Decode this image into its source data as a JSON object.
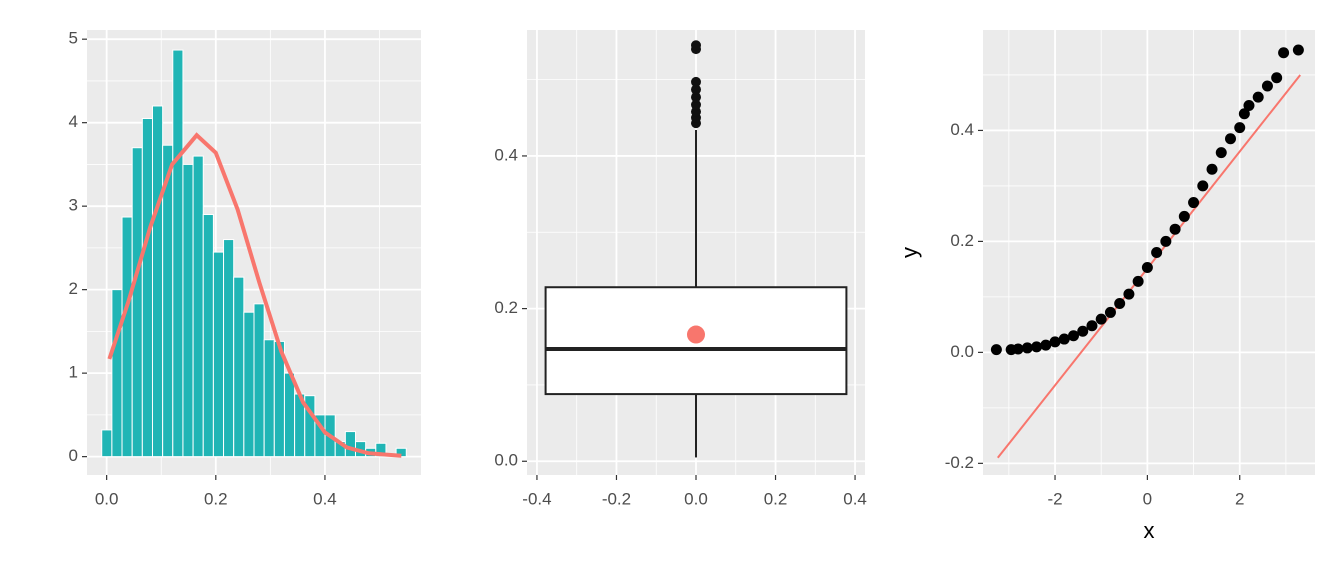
{
  "chart_data": [
    {
      "type": "histogram",
      "bins": [
        -0.009,
        0.0096,
        0.0282,
        0.0468,
        0.0654,
        0.084,
        0.1026,
        0.1212,
        0.1398,
        0.1584,
        0.177,
        0.1956,
        0.2142,
        0.2328,
        0.2514,
        0.27,
        0.2886,
        0.3072,
        0.3258,
        0.3444,
        0.363,
        0.3816,
        0.4002,
        0.4188,
        0.4374,
        0.456,
        0.4746,
        0.4932,
        0.5118,
        0.5304,
        0.549
      ],
      "counts": [
        0.32,
        2.0,
        2.87,
        3.7,
        4.05,
        4.2,
        3.73,
        4.87,
        3.5,
        3.6,
        2.9,
        2.45,
        2.6,
        2.15,
        1.73,
        1.83,
        1.4,
        1.38,
        1.0,
        0.75,
        0.73,
        0.5,
        0.5,
        0.18,
        0.3,
        0.18,
        0.1,
        0.16,
        0.0,
        0.1
      ],
      "color": "#20b5b5",
      "curve": {
        "color": "#f8766d",
        "x": [
          0.005,
          0.04,
          0.08,
          0.12,
          0.165,
          0.2,
          0.24,
          0.28,
          0.32,
          0.36,
          0.4,
          0.44,
          0.48,
          0.54
        ],
        "y": [
          1.17,
          1.86,
          2.75,
          3.5,
          3.85,
          3.64,
          2.96,
          2.08,
          1.26,
          0.65,
          0.29,
          0.11,
          0.04,
          0.01
        ]
      },
      "xlim": [
        -0.036,
        0.576
      ],
      "ylim": [
        -0.22,
        5.11
      ],
      "xticks": [
        {
          "value": 0,
          "label": "0.0"
        },
        0.2,
        0.4
      ],
      "yticks": [
        0,
        1,
        2,
        3,
        4,
        5
      ]
    },
    {
      "type": "box",
      "position": 0,
      "stats": {
        "whislo": 0.005,
        "q1": 0.088,
        "med": 0.147,
        "q3": 0.228,
        "whishi": 0.434
      },
      "outliers": [
        0.443,
        0.45,
        0.458,
        0.467,
        0.477,
        0.487,
        0.497,
        0.54,
        0.545
      ],
      "mean": 0.166,
      "mean_color": "#f8766d",
      "xlim": [
        -0.425,
        0.425
      ],
      "ylim": [
        -0.018,
        0.565
      ],
      "xticks": [
        -0.4,
        -0.2,
        {
          "value": 0,
          "label": "0.0"
        },
        0.2,
        0.4
      ],
      "yticks": [
        {
          "value": 0,
          "label": "0.0"
        },
        0.2,
        0.4
      ]
    },
    {
      "type": "qq",
      "x": [
        -3.27,
        -2.95,
        -2.8,
        -2.6,
        -2.4,
        -2.2,
        -2.0,
        -1.8,
        -1.6,
        -1.4,
        -1.2,
        -1.0,
        -0.8,
        -0.6,
        -0.4,
        -0.2,
        0,
        0.2,
        0.4,
        0.6,
        0.8,
        1.0,
        1.2,
        1.4,
        1.6,
        1.8,
        2.0,
        2.1,
        2.2,
        2.4,
        2.6,
        2.8,
        2.95,
        3.27
      ],
      "y": [
        0.005,
        0.005,
        0.006,
        0.008,
        0.01,
        0.013,
        0.019,
        0.024,
        0.03,
        0.038,
        0.048,
        0.06,
        0.072,
        0.088,
        0.105,
        0.128,
        0.153,
        0.18,
        0.2,
        0.222,
        0.245,
        0.27,
        0.3,
        0.33,
        0.36,
        0.385,
        0.405,
        0.43,
        0.445,
        0.46,
        0.48,
        0.495,
        0.54,
        0.545
      ],
      "line": {
        "color": "#f8766d",
        "x": [
          -3.24,
          3.31
        ],
        "y": [
          -0.19,
          0.5
        ]
      },
      "xlabel": "x",
      "ylabel": "y",
      "xlim": [
        -3.56,
        3.63
      ],
      "ylim": [
        -0.221,
        0.581
      ],
      "xticks": [
        -2,
        0,
        2
      ],
      "yticks": [
        -0.2,
        {
          "value": 0,
          "label": "0.0"
        },
        0.2,
        0.4
      ]
    }
  ]
}
